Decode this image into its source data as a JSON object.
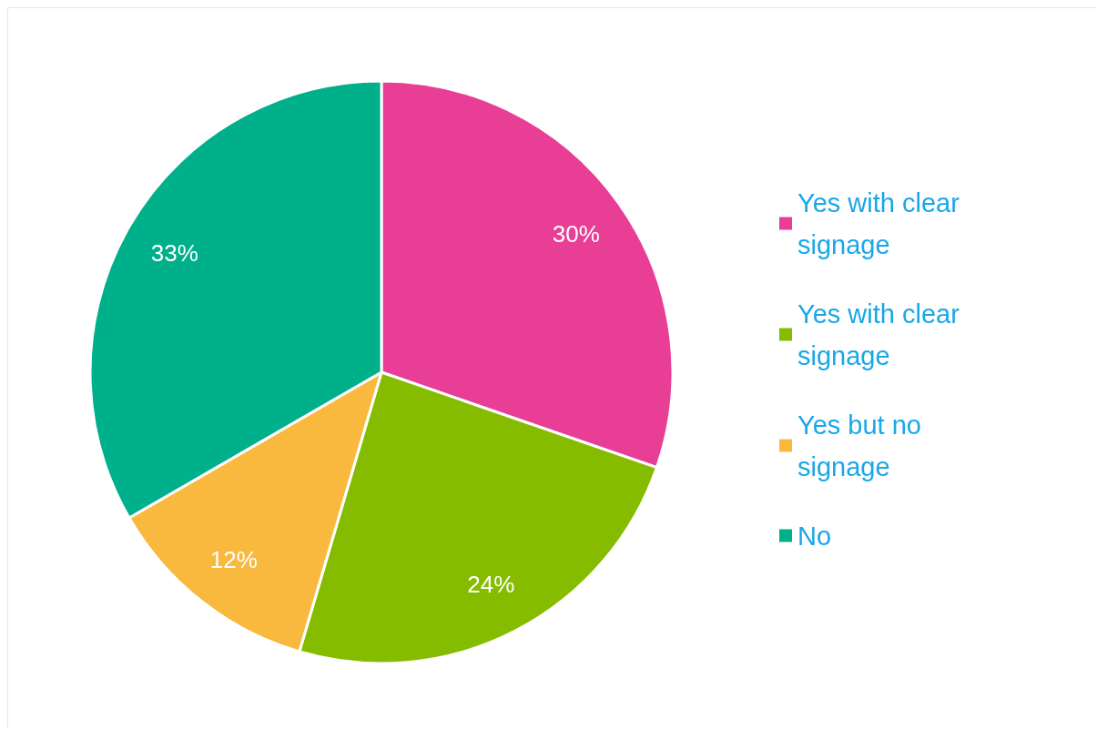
{
  "chart_data": {
    "type": "pie",
    "categories": [
      "Yes with clear signage",
      "Yes with clear signage",
      "Yes but no signage",
      "No"
    ],
    "values": [
      30,
      24,
      12,
      33
    ],
    "value_labels": [
      "30%",
      "24%",
      "12%",
      "33%"
    ],
    "colors": [
      "#e83e96",
      "#86bc00",
      "#f9b93e",
      "#00b08a"
    ],
    "legend": "right"
  }
}
